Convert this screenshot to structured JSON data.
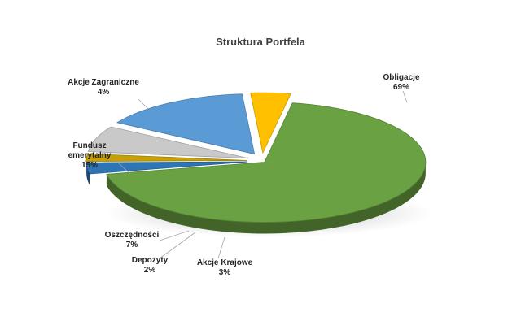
{
  "chart_data": {
    "type": "pie",
    "title": "Struktura Portfela",
    "slices": [
      {
        "name": "Obligacje",
        "value": 69,
        "label": "69%",
        "color": "#6aa142"
      },
      {
        "name": "Akcje Krajowe",
        "value": 3,
        "label": "3%",
        "color": "#2e75b6"
      },
      {
        "name": "Depozyty",
        "value": 2,
        "label": "2%",
        "color": "#c7a008"
      },
      {
        "name": "Oszczędności",
        "value": 7,
        "label": "7%",
        "color": "#c9c9c9"
      },
      {
        "name_lines": [
          "Fundusz",
          "emerytalny"
        ],
        "name": "Fundusz emerytalny",
        "value": 15,
        "label": "15%",
        "color": "#5b9bd5"
      },
      {
        "name": "Akcje Zagraniczne",
        "value": 4,
        "label": "4%",
        "color": "#ffc000"
      }
    ],
    "legend": "none",
    "style": "3d-exploded"
  }
}
